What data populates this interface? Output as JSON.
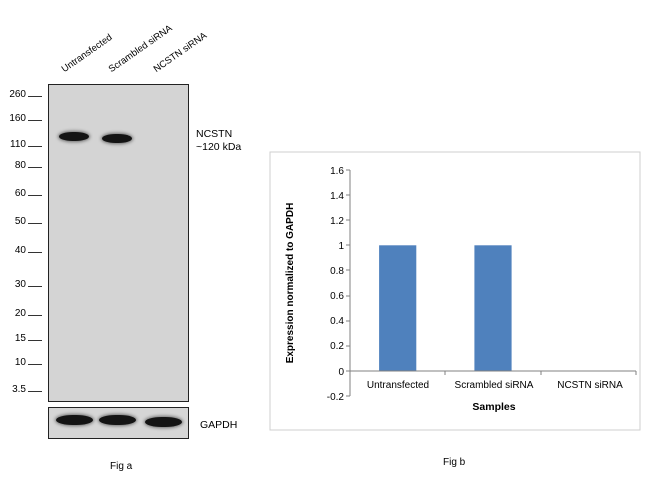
{
  "fig_a": {
    "lanes": [
      "Untransfected",
      "Scrambled siRNA",
      "NCSTN  siRNA"
    ],
    "mw_markers": [
      "260",
      "160",
      "110",
      "80",
      "60",
      "50",
      "40",
      "30",
      "20",
      "15",
      "10",
      "3.5"
    ],
    "target_label": "NCSTN",
    "target_size": "~120 kDa",
    "loading_control": "GAPDH",
    "caption": "Fig a"
  },
  "fig_b": {
    "caption": "Fig b"
  },
  "colors": {
    "bar": "#4f81bd",
    "band": "#141414",
    "membrane": "#d4d4d4"
  },
  "chart_data": {
    "type": "bar",
    "categories": [
      "Untransfected",
      "Scrambled siRNA",
      "NCSTN siRNA"
    ],
    "values": [
      1,
      1,
      0
    ],
    "xlabel": "Samples",
    "ylabel": "Expression normalized to GAPDH",
    "ylim": [
      -0.2,
      1.6
    ],
    "yticks": [
      "1.6",
      "1.4",
      "1.2",
      "1",
      "0.8",
      "0.6",
      "0.4",
      "0.2",
      "0",
      "-0.2"
    ],
    "grid": false
  }
}
